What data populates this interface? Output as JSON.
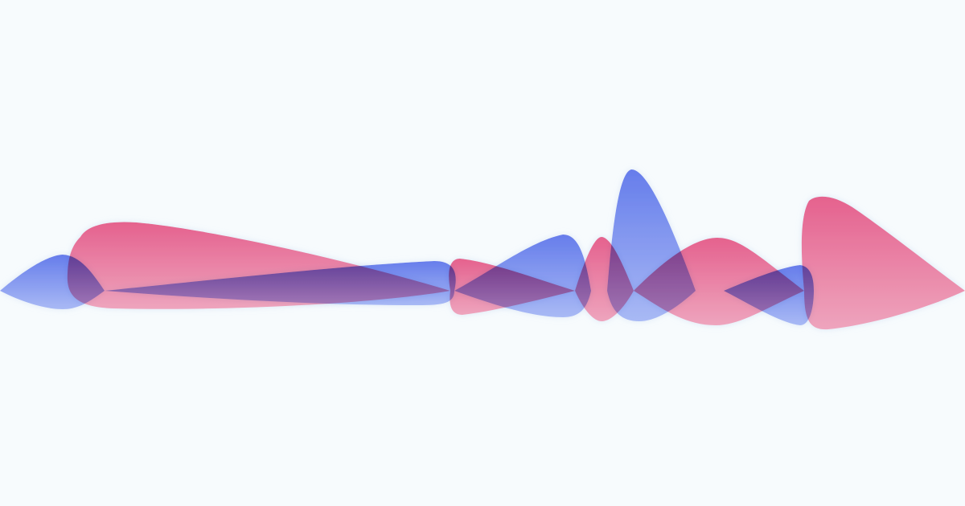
{
  "background": "#f7fbfd",
  "colors": {
    "pink_top": "#e8376f",
    "pink_bottom": "#f48fae",
    "blue_top": "#2f4de6",
    "blue_bottom": "#8fa3f4",
    "glow": "#ffffff"
  },
  "waves": [
    {
      "id": "pink-wave",
      "name": "pink-waveform",
      "color": "pink"
    },
    {
      "id": "blue-wave",
      "name": "blue-waveform",
      "color": "blue"
    }
  ]
}
